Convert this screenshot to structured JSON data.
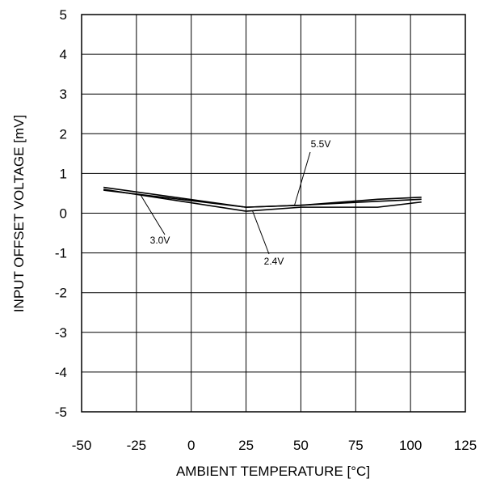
{
  "chart_data": {
    "type": "line",
    "title": "",
    "xlabel": "AMBIENT TEMPERATURE [°C]",
    "ylabel": "INPUT OFFSET VOLTAGE [mV]",
    "xlim": [
      -50,
      125
    ],
    "ylim": [
      -5,
      5
    ],
    "x_ticks": [
      "-50",
      "-25",
      "0",
      "25",
      "50",
      "75",
      "100",
      "125"
    ],
    "y_ticks": [
      "5",
      "4",
      "3",
      "2",
      "1",
      "0",
      "-1",
      "-2",
      "-3",
      "-4",
      "-5"
    ],
    "grid": true,
    "legend": "none",
    "series": [
      {
        "name": "5.5V",
        "x": [
          -40,
          25,
          50,
          85,
          105
        ],
        "y": [
          0.65,
          0.15,
          0.2,
          0.3,
          0.35
        ]
      },
      {
        "name": "3.0V",
        "x": [
          -40,
          25,
          50,
          85,
          105
        ],
        "y": [
          0.58,
          0.15,
          0.2,
          0.35,
          0.4
        ]
      },
      {
        "name": "2.4V",
        "x": [
          -40,
          25,
          50,
          85,
          105
        ],
        "y": [
          0.6,
          0.05,
          0.15,
          0.15,
          0.28
        ]
      }
    ],
    "annotations": [
      {
        "text": "5.5V",
        "series": "5.5V",
        "x": 47,
        "y": 0.18
      },
      {
        "text": "3.0V",
        "series": "3.0V",
        "x": -23,
        "y": 0.45
      },
      {
        "text": "2.4V",
        "series": "2.4V",
        "x": 28,
        "y": 0.05
      }
    ]
  }
}
